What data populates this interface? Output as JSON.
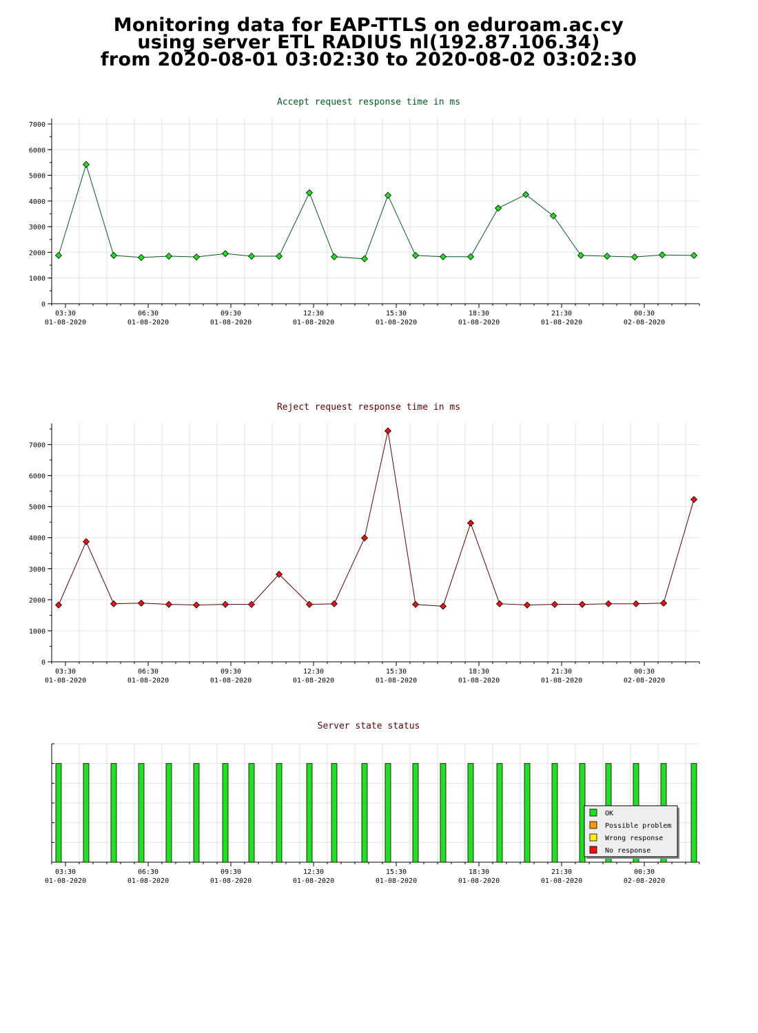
{
  "page": {
    "title_lines": [
      "Monitoring data for EAP-TTLS on eduroam.ac.cy",
      "using server ETL RADIUS nl(192.87.106.34)",
      "from 2020-08-01 03:02:30 to 2020-08-02 03:02:30"
    ]
  },
  "chart_data": [
    {
      "type": "line",
      "title": "Accept request response time in ms",
      "title_color": "#005a1e",
      "line_color": "#005a1e",
      "marker_color": "#22dd22",
      "ylim": [
        0,
        7000
      ],
      "yticks": [
        0,
        1000,
        2000,
        3000,
        4000,
        5000,
        6000,
        7000
      ],
      "xlim": [
        3.0,
        26.5
      ],
      "xticks": [
        {
          "x": 3.5,
          "time": "03:30",
          "date": "01-08-2020"
        },
        {
          "x": 6.5,
          "time": "06:30",
          "date": "01-08-2020"
        },
        {
          "x": 9.5,
          "time": "09:30",
          "date": "01-08-2020"
        },
        {
          "x": 12.5,
          "time": "12:30",
          "date": "01-08-2020"
        },
        {
          "x": 15.5,
          "time": "15:30",
          "date": "01-08-2020"
        },
        {
          "x": 18.5,
          "time": "18:30",
          "date": "01-08-2020"
        },
        {
          "x": 21.5,
          "time": "21:30",
          "date": "01-08-2020"
        },
        {
          "x": 24.5,
          "time": "00:30",
          "date": "02-08-2020"
        }
      ],
      "grid": true,
      "points": [
        {
          "x": 3.25,
          "y": 1880
        },
        {
          "x": 4.25,
          "y": 5420
        },
        {
          "x": 5.25,
          "y": 1880
        },
        {
          "x": 6.25,
          "y": 1800
        },
        {
          "x": 7.25,
          "y": 1850
        },
        {
          "x": 8.25,
          "y": 1820
        },
        {
          "x": 9.3,
          "y": 1950
        },
        {
          "x": 10.25,
          "y": 1850
        },
        {
          "x": 11.25,
          "y": 1850
        },
        {
          "x": 12.35,
          "y": 4320
        },
        {
          "x": 13.25,
          "y": 1830
        },
        {
          "x": 14.35,
          "y": 1750
        },
        {
          "x": 15.2,
          "y": 4220
        },
        {
          "x": 16.2,
          "y": 1880
        },
        {
          "x": 17.2,
          "y": 1830
        },
        {
          "x": 18.2,
          "y": 1830
        },
        {
          "x": 19.2,
          "y": 3720
        },
        {
          "x": 20.2,
          "y": 4250
        },
        {
          "x": 21.2,
          "y": 3420
        },
        {
          "x": 22.2,
          "y": 1880
        },
        {
          "x": 23.15,
          "y": 1850
        },
        {
          "x": 24.15,
          "y": 1820
        },
        {
          "x": 25.15,
          "y": 1900
        },
        {
          "x": 26.3,
          "y": 1880
        }
      ]
    },
    {
      "type": "line",
      "title": "Reject request response time in ms",
      "title_color": "#5a0000",
      "line_color": "#5a0000",
      "marker_color": "#ee1111",
      "ylim": [
        0,
        7500
      ],
      "yticks": [
        0,
        1000,
        2000,
        3000,
        4000,
        5000,
        6000,
        7000
      ],
      "xlim": [
        3.0,
        26.5
      ],
      "xticks": [
        {
          "x": 3.5,
          "time": "03:30",
          "date": "01-08-2020"
        },
        {
          "x": 6.5,
          "time": "06:30",
          "date": "01-08-2020"
        },
        {
          "x": 9.5,
          "time": "09:30",
          "date": "01-08-2020"
        },
        {
          "x": 12.5,
          "time": "12:30",
          "date": "01-08-2020"
        },
        {
          "x": 15.5,
          "time": "15:30",
          "date": "01-08-2020"
        },
        {
          "x": 18.5,
          "time": "18:30",
          "date": "01-08-2020"
        },
        {
          "x": 21.5,
          "time": "21:30",
          "date": "01-08-2020"
        },
        {
          "x": 24.5,
          "time": "00:30",
          "date": "02-08-2020"
        }
      ],
      "grid": true,
      "points": [
        {
          "x": 3.25,
          "y": 1830
        },
        {
          "x": 4.25,
          "y": 3870
        },
        {
          "x": 5.25,
          "y": 1870
        },
        {
          "x": 6.25,
          "y": 1890
        },
        {
          "x": 7.25,
          "y": 1850
        },
        {
          "x": 8.25,
          "y": 1830
        },
        {
          "x": 9.3,
          "y": 1850
        },
        {
          "x": 10.25,
          "y": 1850
        },
        {
          "x": 11.25,
          "y": 2820
        },
        {
          "x": 12.35,
          "y": 1850
        },
        {
          "x": 13.25,
          "y": 1870
        },
        {
          "x": 14.35,
          "y": 3990
        },
        {
          "x": 15.2,
          "y": 7440
        },
        {
          "x": 16.2,
          "y": 1850
        },
        {
          "x": 17.2,
          "y": 1790
        },
        {
          "x": 18.2,
          "y": 4470
        },
        {
          "x": 19.25,
          "y": 1870
        },
        {
          "x": 20.25,
          "y": 1830
        },
        {
          "x": 21.25,
          "y": 1850
        },
        {
          "x": 22.25,
          "y": 1850
        },
        {
          "x": 23.2,
          "y": 1870
        },
        {
          "x": 24.2,
          "y": 1870
        },
        {
          "x": 25.2,
          "y": 1890
        },
        {
          "x": 26.3,
          "y": 5230
        }
      ]
    },
    {
      "type": "bar",
      "title": "Server state status",
      "title_color": "#5a0000",
      "xlim": [
        3.0,
        26.5
      ],
      "xticks": [
        {
          "x": 3.5,
          "time": "03:30",
          "date": "01-08-2020"
        },
        {
          "x": 6.5,
          "time": "06:30",
          "date": "01-08-2020"
        },
        {
          "x": 9.5,
          "time": "09:30",
          "date": "01-08-2020"
        },
        {
          "x": 12.5,
          "time": "12:30",
          "date": "01-08-2020"
        },
        {
          "x": 15.5,
          "time": "15:30",
          "date": "01-08-2020"
        },
        {
          "x": 18.5,
          "time": "18:30",
          "date": "01-08-2020"
        },
        {
          "x": 21.5,
          "time": "21:30",
          "date": "01-08-2020"
        },
        {
          "x": 24.5,
          "time": "00:30",
          "date": "02-08-2020"
        }
      ],
      "grid": true,
      "bar_x": [
        3.25,
        4.25,
        5.25,
        6.25,
        7.25,
        8.25,
        9.3,
        10.25,
        11.25,
        12.35,
        13.25,
        14.35,
        15.2,
        16.2,
        17.2,
        18.2,
        19.25,
        20.25,
        21.25,
        22.25,
        23.2,
        24.2,
        25.2,
        26.3
      ],
      "bar_state": [
        "OK",
        "OK",
        "OK",
        "OK",
        "OK",
        "OK",
        "OK",
        "OK",
        "OK",
        "OK",
        "OK",
        "OK",
        "OK",
        "OK",
        "OK",
        "OK",
        "OK",
        "OK",
        "OK",
        "OK",
        "OK",
        "OK",
        "OK",
        "OK"
      ],
      "legend_position": "bottom-right",
      "legend": [
        {
          "label": "OK",
          "color": "#22dd22"
        },
        {
          "label": "Possible problem",
          "color": "#ff9900"
        },
        {
          "label": "Wrong response",
          "color": "#ffee00"
        },
        {
          "label": "No response",
          "color": "#ee1111"
        }
      ]
    }
  ]
}
